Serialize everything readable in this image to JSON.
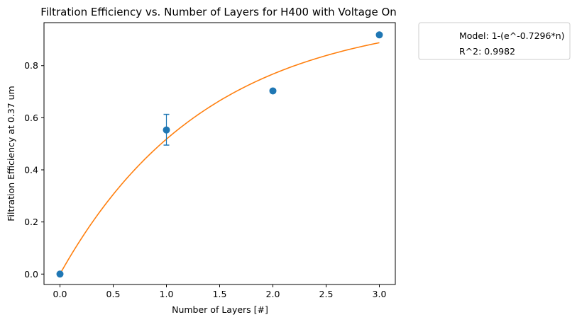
{
  "chart_data": {
    "type": "scatter",
    "title": "Filtration Efficiency vs. Number of Layers for H400 with Voltage On",
    "xlabel": "Number of Layers [#]",
    "ylabel": "Filtration Efficiency at 0.37 um",
    "xlim": [
      -0.15,
      3.15
    ],
    "ylim": [
      -0.04,
      0.965
    ],
    "xticks": [
      0.0,
      0.5,
      1.0,
      1.5,
      2.0,
      2.5,
      3.0
    ],
    "xtick_labels": [
      "0.0",
      "0.5",
      "1.0",
      "1.5",
      "2.0",
      "2.5",
      "3.0"
    ],
    "yticks": [
      0.0,
      0.2,
      0.4,
      0.6,
      0.8
    ],
    "ytick_labels": [
      "0.0",
      "0.2",
      "0.4",
      "0.6",
      "0.8"
    ],
    "grid": false,
    "series": [
      {
        "type": "scatter",
        "x": [
          0,
          1,
          2,
          3
        ],
        "y": [
          0.0,
          0.553,
          0.703,
          0.918
        ],
        "yerr_low": [
          0,
          0.495,
          0,
          0
        ],
        "yerr_high": [
          0,
          0.613,
          0,
          0
        ],
        "color": "#1f77b4"
      },
      {
        "type": "line",
        "function": "1-exp(-k*n)",
        "k": 0.7296,
        "x_range": [
          0,
          3
        ],
        "color": "#ff7f0e"
      }
    ],
    "legend": {
      "placement": "outside-top-right",
      "entries": [
        "Model: 1-(e^-0.7296*n)",
        "R^2: 0.9982"
      ]
    }
  }
}
